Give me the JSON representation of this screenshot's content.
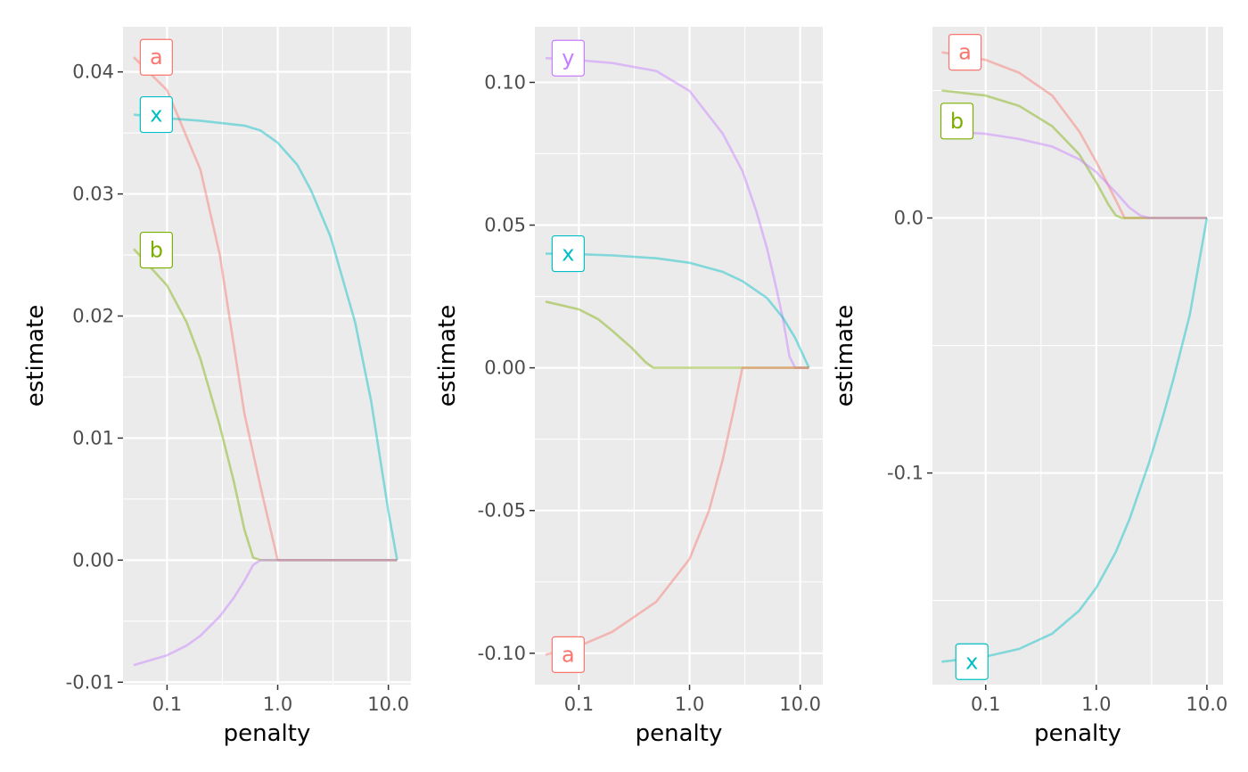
{
  "chart_data": [
    {
      "type": "line",
      "xlabel": "penalty",
      "ylabel": "estimate",
      "x_scale": "log",
      "xlim": [
        0.04,
        16.0
      ],
      "ylim": [
        -0.0102,
        0.0437
      ],
      "x_ticks": [
        {
          "value": 0.1,
          "label": "0.1"
        },
        {
          "value": 1.0,
          "label": "1.0"
        },
        {
          "value": 10.0,
          "label": "10.0"
        }
      ],
      "y_ticks": [
        {
          "value": -0.01,
          "label": "-0.01"
        },
        {
          "value": 0.0,
          "label": "0.00"
        },
        {
          "value": 0.01,
          "label": "0.01"
        },
        {
          "value": 0.02,
          "label": "0.02"
        },
        {
          "value": 0.03,
          "label": "0.03"
        },
        {
          "value": 0.04,
          "label": "0.04"
        }
      ],
      "grid": true,
      "series": [
        {
          "name": "a",
          "color": "#F8766D",
          "label_at": [
            0.08,
            0.0412
          ],
          "x": [
            0.05,
            0.1,
            0.2,
            0.3,
            0.5,
            0.7,
            1.0,
            2.0,
            5.0,
            10.0,
            12.0
          ],
          "y": [
            0.0412,
            0.0385,
            0.032,
            0.025,
            0.012,
            0.006,
            0.0,
            0.0,
            0.0,
            0.0,
            0.0
          ]
        },
        {
          "name": "x",
          "color": "#00BFC4",
          "label_at": [
            0.08,
            0.0365
          ],
          "x": [
            0.05,
            0.1,
            0.2,
            0.5,
            0.7,
            1.0,
            1.5,
            2.0,
            3.0,
            5.0,
            7.0,
            10.0,
            12.0
          ],
          "y": [
            0.0365,
            0.0362,
            0.036,
            0.0356,
            0.0352,
            0.0342,
            0.0324,
            0.0303,
            0.0265,
            0.0195,
            0.013,
            0.004,
            0.0
          ]
        },
        {
          "name": "b",
          "color": "#7CAE00",
          "label_at": [
            0.08,
            0.0254
          ],
          "x": [
            0.05,
            0.1,
            0.15,
            0.2,
            0.3,
            0.4,
            0.5,
            0.6,
            0.7,
            1.0,
            12.0
          ],
          "y": [
            0.0255,
            0.0225,
            0.0195,
            0.0165,
            0.011,
            0.0065,
            0.0025,
            0.0002,
            0.0,
            0.0,
            0.0
          ]
        },
        {
          "name": "",
          "color": "#C77CFF",
          "x": [
            0.05,
            0.1,
            0.15,
            0.2,
            0.3,
            0.4,
            0.5,
            0.6,
            0.7,
            1.0,
            12.0
          ],
          "y": [
            -0.0086,
            -0.0078,
            -0.007,
            -0.0062,
            -0.0046,
            -0.0031,
            -0.0017,
            -0.0004,
            0.0,
            0.0,
            0.0
          ]
        }
      ]
    },
    {
      "type": "line",
      "xlabel": "penalty",
      "ylabel": "estimate",
      "x_scale": "log",
      "xlim": [
        0.04,
        16.0
      ],
      "ylim": [
        -0.111,
        0.1195
      ],
      "x_ticks": [
        {
          "value": 0.1,
          "label": "0.1"
        },
        {
          "value": 1.0,
          "label": "1.0"
        },
        {
          "value": 10.0,
          "label": "10.0"
        }
      ],
      "y_ticks": [
        {
          "value": -0.1,
          "label": "-0.10"
        },
        {
          "value": -0.05,
          "label": "-0.05"
        },
        {
          "value": 0.0,
          "label": "0.00"
        },
        {
          "value": 0.05,
          "label": "0.05"
        },
        {
          "value": 0.1,
          "label": "0.10"
        }
      ],
      "grid": true,
      "series": [
        {
          "name": "y",
          "color": "#C77CFF",
          "label_at": [
            0.08,
            0.1085
          ],
          "x": [
            0.05,
            0.1,
            0.2,
            0.5,
            1.0,
            2.0,
            3.0,
            4.0,
            5.0,
            6.0,
            7.0,
            8.0,
            9.0,
            12.0
          ],
          "y": [
            0.1085,
            0.1078,
            0.1068,
            0.104,
            0.097,
            0.082,
            0.069,
            0.055,
            0.042,
            0.029,
            0.017,
            0.004,
            0.0,
            0.0
          ]
        },
        {
          "name": "x",
          "color": "#00BFC4",
          "label_at": [
            0.08,
            0.04
          ],
          "x": [
            0.05,
            0.1,
            0.2,
            0.5,
            1.0,
            2.0,
            3.0,
            5.0,
            7.0,
            9.0,
            12.0
          ],
          "y": [
            0.04,
            0.0398,
            0.0394,
            0.0384,
            0.0368,
            0.0336,
            0.0304,
            0.0245,
            0.0175,
            0.0105,
            0.0
          ]
        },
        {
          "name": "",
          "color": "#7CAE00",
          "x": [
            0.05,
            0.1,
            0.15,
            0.2,
            0.3,
            0.4,
            0.47,
            0.5,
            12.0
          ],
          "y": [
            0.0232,
            0.0205,
            0.017,
            0.013,
            0.007,
            0.002,
            0.0,
            0.0,
            0.0
          ]
        },
        {
          "name": "a",
          "color": "#F8766D",
          "label_at": [
            0.08,
            -0.1005
          ],
          "x": [
            0.05,
            0.1,
            0.2,
            0.5,
            1.0,
            1.5,
            2.0,
            2.5,
            3.0,
            12.0
          ],
          "y": [
            -0.1005,
            -0.0975,
            -0.0925,
            -0.082,
            -0.067,
            -0.05,
            -0.032,
            -0.015,
            0.0,
            0.0
          ]
        }
      ]
    },
    {
      "type": "line",
      "xlabel": "penalty",
      "ylabel": "estimate",
      "x_scale": "log",
      "xlim": [
        0.033,
        14.0
      ],
      "ylim": [
        -0.183,
        0.075
      ],
      "x_ticks": [
        {
          "value": 0.1,
          "label": "0.1"
        },
        {
          "value": 1.0,
          "label": "1.0"
        },
        {
          "value": 10.0,
          "label": "10.0"
        }
      ],
      "y_ticks": [
        {
          "value": -0.1,
          "label": "-0.1"
        },
        {
          "value": 0.0,
          "label": "0.0"
        }
      ],
      "grid": true,
      "series": [
        {
          "name": "a",
          "color": "#F8766D",
          "label_at": [
            0.065,
            0.065
          ],
          "x": [
            0.04,
            0.1,
            0.2,
            0.4,
            0.7,
            1.0,
            1.5,
            1.8,
            2.0,
            10.0
          ],
          "y": [
            0.065,
            0.062,
            0.057,
            0.048,
            0.034,
            0.022,
            0.007,
            0.0,
            0.0,
            0.0
          ]
        },
        {
          "name": "b",
          "color": "#7CAE00",
          "label_at": [
            0.055,
            0.038
          ],
          "x": [
            0.04,
            0.1,
            0.2,
            0.4,
            0.7,
            1.0,
            1.3,
            1.5,
            1.7,
            10.0
          ],
          "y": [
            0.05,
            0.048,
            0.044,
            0.036,
            0.025,
            0.014,
            0.005,
            0.001,
            0.0,
            0.0
          ]
        },
        {
          "name": "",
          "color": "#C77CFF",
          "x": [
            0.04,
            0.1,
            0.2,
            0.4,
            0.7,
            1.0,
            1.5,
            2.0,
            2.5,
            3.0,
            10.0
          ],
          "y": [
            0.034,
            0.033,
            0.031,
            0.028,
            0.023,
            0.018,
            0.01,
            0.004,
            0.001,
            0.0,
            0.0
          ]
        },
        {
          "name": "x",
          "color": "#00BFC4",
          "label_at": [
            0.075,
            -0.174
          ],
          "x": [
            0.04,
            0.1,
            0.2,
            0.4,
            0.7,
            1.0,
            1.5,
            2.0,
            3.0,
            4.0,
            5.0,
            7.0,
            10.0
          ],
          "y": [
            -0.174,
            -0.172,
            -0.169,
            -0.163,
            -0.154,
            -0.145,
            -0.131,
            -0.118,
            -0.096,
            -0.078,
            -0.063,
            -0.038,
            0.0
          ]
        }
      ]
    }
  ]
}
